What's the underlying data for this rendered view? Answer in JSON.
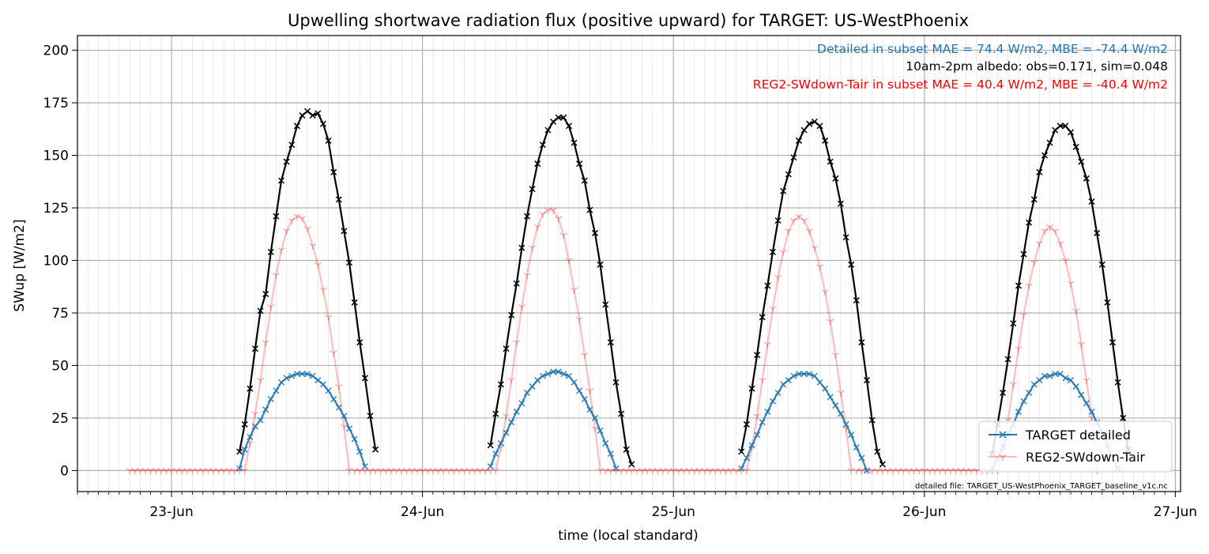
{
  "chart_data": {
    "type": "line",
    "title": "Upwelling shortwave radiation flux (positive upward) for TARGET: US-WestPhoenix",
    "xlabel": "time (local standard)",
    "ylabel": "SWup [W/m2]",
    "xlim": [
      "2024-06-22T15:00",
      "2024-06-27T00:30"
    ],
    "ylim": [
      -10,
      207
    ],
    "grid": true,
    "legend_position": "lower-right",
    "x_ticks": [
      {
        "label": "23-Jun",
        "day": 23
      },
      {
        "label": "24-Jun",
        "day": 24
      },
      {
        "label": "25-Jun",
        "day": 25
      },
      {
        "label": "26-Jun",
        "day": 26
      },
      {
        "label": "27-Jun",
        "day": 27
      }
    ],
    "y_ticks": [
      0,
      25,
      50,
      75,
      100,
      125,
      150,
      175,
      200
    ],
    "annotations": [
      {
        "text": "Detailed in subset MAE = 74.4 W/m2, MBE = -74.4 W/m2",
        "color": "#1f77b4"
      },
      {
        "text": "10am-2pm albedo: obs=0.171, sim=0.048",
        "color": "#000000"
      },
      {
        "text": "REG2-SWdown-Tair in subset MAE = 40.4 W/m2, MBE = -40.4 W/m2",
        "color": "#ff0000"
      }
    ],
    "footnote": "detailed file: TARGET_US-WestPhoenix_TARGET_baseline_v1c.nc",
    "series": [
      {
        "name": "TARGET detailed",
        "color": "#1f77b4",
        "marker": "x",
        "sampling": "30min, daytime",
        "days": [
          {
            "day": 23,
            "start": "06:30",
            "values": [
              1,
              10,
              16,
              21,
              24,
              29,
              34,
              38,
              42,
              44,
              45,
              46,
              46,
              46,
              45,
              43,
              41,
              38,
              34,
              30,
              26,
              20,
              15,
              9,
              2
            ]
          },
          {
            "day": 24,
            "start": "06:30",
            "values": [
              2,
              8,
              13,
              18,
              23,
              28,
              32,
              37,
              40,
              43,
              45,
              46,
              47,
              47,
              46,
              45,
              42,
              38,
              34,
              29,
              25,
              19,
              13,
              8,
              1
            ]
          },
          {
            "day": 25,
            "start": "06:30",
            "values": [
              1,
              6,
              12,
              17,
              23,
              28,
              33,
              37,
              41,
              43,
              45,
              46,
              46,
              46,
              45,
              42,
              39,
              35,
              31,
              27,
              22,
              17,
              11,
              6,
              0
            ]
          },
          {
            "day": 26,
            "start": "06:30",
            "values": [
              1,
              6,
              11,
              17,
              22,
              28,
              33,
              37,
              41,
              43,
              45,
              45,
              46,
              46,
              44,
              43,
              40,
              36,
              32,
              28,
              23,
              18,
              12,
              6,
              1
            ]
          }
        ]
      },
      {
        "name": "REG2-SWdown-Tair",
        "color": "#ff0000",
        "marker": "1",
        "sampling": "30min",
        "days": [
          {
            "day": 22,
            "start": "20:00",
            "values": [
              0,
              0,
              0,
              0,
              0,
              0,
              0,
              0,
              0,
              0,
              0,
              0,
              0,
              0,
              0,
              0,
              0,
              0,
              0,
              0,
              0,
              0
            ]
          },
          {
            "day": 23,
            "start": "07:00",
            "values": [
              0,
              13,
              27,
              43,
              61,
              78,
              93,
              105,
              114,
              119,
              121,
              120,
              115,
              107,
              98,
              86,
              73,
              56,
              40,
              21,
              0
            ]
          },
          {
            "day": 23,
            "start": "17:30",
            "values": [
              0,
              0,
              0,
              0,
              0,
              0,
              0,
              0,
              0,
              0,
              0,
              0,
              0,
              0,
              0,
              0,
              0,
              0,
              0,
              0,
              0,
              0,
              0,
              0,
              0,
              0,
              0
            ]
          },
          {
            "day": 24,
            "start": "07:00",
            "values": [
              0,
              11,
              26,
              43,
              61,
              78,
              93,
              106,
              116,
              122,
              124,
              124,
              120,
              112,
              100,
              86,
              72,
              55,
              38,
              20,
              0
            ]
          },
          {
            "day": 24,
            "start": "17:30",
            "values": [
              0,
              0,
              0,
              0,
              0,
              0,
              0,
              0,
              0,
              0,
              0,
              0,
              0,
              0,
              0,
              0,
              0,
              0,
              0,
              0,
              0,
              0,
              0,
              0,
              0,
              0,
              0
            ]
          },
          {
            "day": 25,
            "start": "07:00",
            "values": [
              0,
              11,
              26,
              43,
              60,
              77,
              92,
              104,
              114,
              119,
              121,
              119,
              114,
              106,
              97,
              85,
              71,
              55,
              37,
              20,
              0
            ]
          },
          {
            "day": 25,
            "start": "17:30",
            "values": [
              0,
              0,
              0,
              0,
              0,
              0,
              0,
              0,
              0,
              0,
              0,
              0,
              0,
              0,
              0,
              0,
              0,
              0,
              0,
              0,
              0,
              0,
              0,
              0,
              0,
              0,
              0
            ]
          },
          {
            "day": 26,
            "start": "07:00",
            "values": [
              0,
              10,
              24,
              41,
              58,
              74,
              88,
              99,
              108,
              114,
              116,
              114,
              108,
              100,
              89,
              76,
              60,
              43,
              25,
              0
            ]
          }
        ]
      },
      {
        "name": "",
        "color": "#000000",
        "marker": "x",
        "sampling": "30min, daytime",
        "days": [
          {
            "day": 23,
            "start": "06:30",
            "values": [
              9,
              22,
              39,
              58,
              76,
              84,
              104,
              121,
              138,
              147,
              155,
              164,
              169,
              171,
              169,
              170,
              165,
              157,
              142,
              129,
              114,
              99,
              80,
              61,
              44,
              26,
              10
            ]
          },
          {
            "day": 24,
            "start": "06:30",
            "values": [
              12,
              27,
              41,
              58,
              74,
              89,
              106,
              121,
              134,
              146,
              155,
              162,
              166,
              168,
              168,
              164,
              156,
              146,
              138,
              124,
              113,
              98,
              79,
              61,
              42,
              27,
              10,
              3
            ]
          },
          {
            "day": 25,
            "start": "06:30",
            "values": [
              9,
              22,
              39,
              55,
              73,
              88,
              104,
              119,
              133,
              141,
              149,
              157,
              162,
              165,
              166,
              164,
              157,
              147,
              139,
              127,
              111,
              98,
              81,
              61,
              43,
              24,
              9,
              3
            ]
          },
          {
            "day": 26,
            "start": "06:30",
            "values": [
              8,
              22,
              37,
              53,
              70,
              88,
              103,
              118,
              129,
              142,
              150,
              156,
              162,
              164,
              164,
              161,
              154,
              147,
              139,
              128,
              113,
              98,
              80,
              61,
              42,
              25,
              10
            ]
          }
        ]
      }
    ]
  }
}
